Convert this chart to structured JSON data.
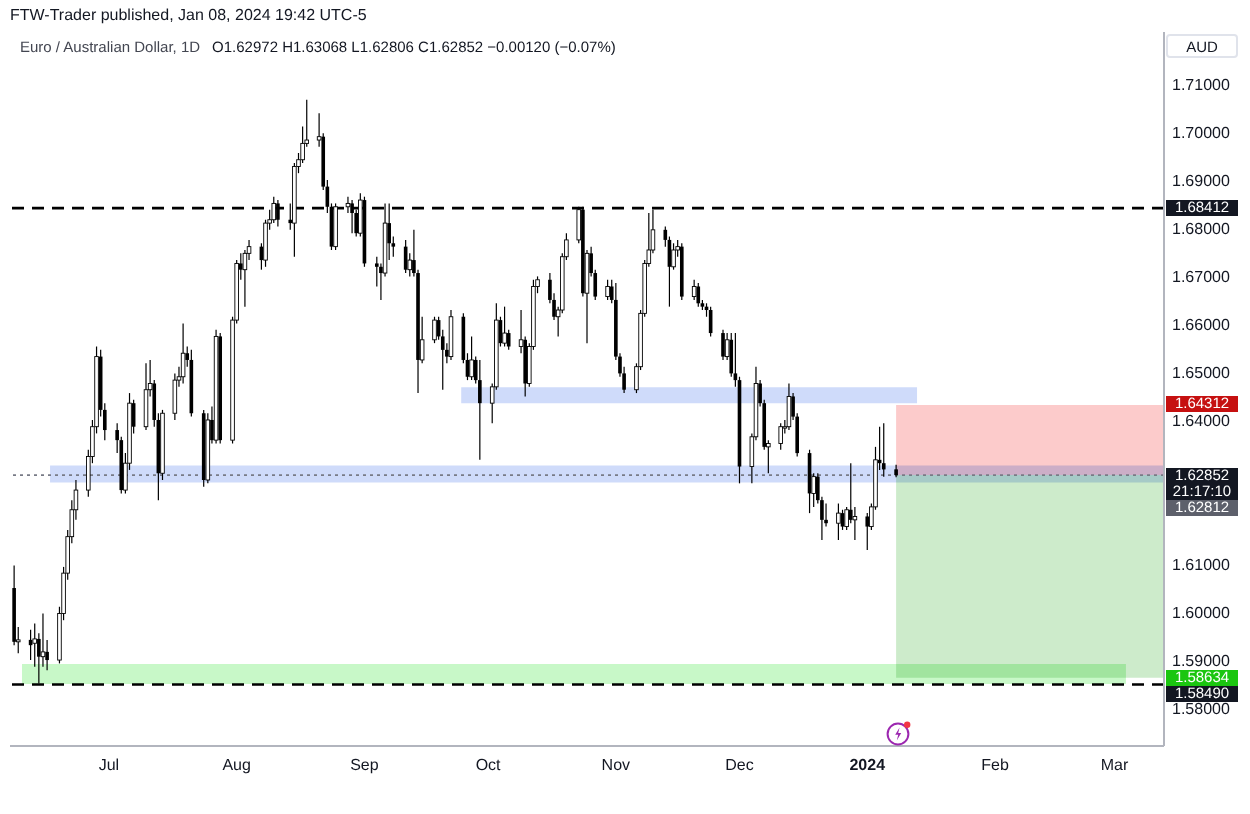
{
  "chart_data": {
    "type": "candlestick",
    "title": "Euro / Australian Dollar, 1D",
    "subtitle": "O1.62972 H1.63068 L1.62806 C1.62852 −0.00120 (−0.07%)",
    "ylabel": "AUD",
    "annotations": [
      "FTW-Trader published, Jan 08, 2024 19:42 UTC-5",
      "21:17:10",
      "1.62812"
    ],
    "color": "#000000",
    "x": [
      "2023-06-08",
      "2023-06-09",
      "2023-06-12",
      "2023-06-13",
      "2023-06-14",
      "2023-06-15",
      "2023-06-16",
      "2023-06-19",
      "2023-06-20",
      "2023-06-21",
      "2023-06-22",
      "2023-06-23",
      "2023-06-26",
      "2023-06-27",
      "2023-06-28",
      "2023-06-29",
      "2023-06-30",
      "2023-07-03",
      "2023-07-04",
      "2023-07-05",
      "2023-07-06",
      "2023-07-07",
      "2023-07-10",
      "2023-07-11",
      "2023-07-12",
      "2023-07-13",
      "2023-07-14",
      "2023-07-17",
      "2023-07-18",
      "2023-07-19",
      "2023-07-20",
      "2023-07-21",
      "2023-07-24",
      "2023-07-25",
      "2023-07-26",
      "2023-07-27",
      "2023-07-28",
      "2023-07-31",
      "2023-08-01",
      "2023-08-02",
      "2023-08-03",
      "2023-08-04",
      "2023-08-07",
      "2023-08-08",
      "2023-08-09",
      "2023-08-10",
      "2023-08-11",
      "2023-08-14",
      "2023-08-15",
      "2023-08-16",
      "2023-08-17",
      "2023-08-18",
      "2023-08-21",
      "2023-08-22",
      "2023-08-23",
      "2023-08-24",
      "2023-08-25",
      "2023-08-28",
      "2023-08-29",
      "2023-08-30",
      "2023-08-31",
      "2023-09-01",
      "2023-09-04",
      "2023-09-05",
      "2023-09-06",
      "2023-09-07",
      "2023-09-08",
      "2023-09-11",
      "2023-09-12",
      "2023-09-13",
      "2023-09-14",
      "2023-09-15",
      "2023-09-18",
      "2023-09-19",
      "2023-09-20",
      "2023-09-21",
      "2023-09-22",
      "2023-09-25",
      "2023-09-26",
      "2023-09-27",
      "2023-09-28",
      "2023-09-29",
      "2023-10-02",
      "2023-10-03",
      "2023-10-04",
      "2023-10-05",
      "2023-10-06",
      "2023-10-09",
      "2023-10-10",
      "2023-10-11",
      "2023-10-12",
      "2023-10-13",
      "2023-10-16",
      "2023-10-17",
      "2023-10-18",
      "2023-10-19",
      "2023-10-20",
      "2023-10-23",
      "2023-10-24",
      "2023-10-25",
      "2023-10-26",
      "2023-10-27",
      "2023-10-30",
      "2023-10-31",
      "2023-11-01",
      "2023-11-02",
      "2023-11-03",
      "2023-11-06",
      "2023-11-07",
      "2023-11-08",
      "2023-11-09",
      "2023-11-10",
      "2023-11-13",
      "2023-11-14",
      "2023-11-15",
      "2023-11-16",
      "2023-11-17",
      "2023-11-20",
      "2023-11-21",
      "2023-11-22",
      "2023-11-23",
      "2023-11-24",
      "2023-11-27",
      "2023-11-28",
      "2023-11-29",
      "2023-11-30",
      "2023-12-01",
      "2023-12-04",
      "2023-12-05",
      "2023-12-06",
      "2023-12-07",
      "2023-12-08",
      "2023-12-11",
      "2023-12-12",
      "2023-12-13",
      "2023-12-14",
      "2023-12-15",
      "2023-12-18",
      "2023-12-19",
      "2023-12-20",
      "2023-12-21",
      "2023-12-22",
      "2023-12-25",
      "2023-12-26",
      "2023-12-27",
      "2023-12-28",
      "2023-12-29",
      "2024-01-01",
      "2024-01-02",
      "2024-01-03",
      "2024-01-04",
      "2024-01-05",
      "2024-01-08"
    ],
    "ohlc": [
      [
        1.605,
        1.6097,
        1.5931,
        1.5938
      ],
      [
        1.5938,
        1.5969,
        1.5914,
        1.5942
      ],
      [
        1.5942,
        1.5963,
        1.59,
        1.5931
      ],
      [
        1.5935,
        1.5976,
        1.5886,
        1.5944
      ],
      [
        1.5944,
        1.5956,
        1.5851,
        1.5907
      ],
      [
        1.5907,
        1.5997,
        1.5886,
        1.5917
      ],
      [
        1.5917,
        1.5942,
        1.5879,
        1.59
      ],
      [
        1.59,
        1.6011,
        1.5893,
        1.5997
      ],
      [
        1.5997,
        1.6094,
        1.5983,
        1.6081
      ],
      [
        1.6081,
        1.6171,
        1.6067,
        1.6157
      ],
      [
        1.6157,
        1.6233,
        1.6143,
        1.6213
      ],
      [
        1.6213,
        1.6275,
        1.6192,
        1.6254
      ],
      [
        1.6254,
        1.6338,
        1.624,
        1.6324
      ],
      [
        1.6324,
        1.64,
        1.631,
        1.6386
      ],
      [
        1.6386,
        1.6553,
        1.6372,
        1.6532
      ],
      [
        1.6532,
        1.6546,
        1.6407,
        1.6421
      ],
      [
        1.6421,
        1.6435,
        1.6358,
        1.6379
      ],
      [
        1.6379,
        1.6393,
        1.6331,
        1.6358
      ],
      [
        1.6358,
        1.6365,
        1.6247,
        1.6254
      ],
      [
        1.6254,
        1.6331,
        1.6247,
        1.631
      ],
      [
        1.631,
        1.6456,
        1.6296,
        1.6435
      ],
      [
        1.6435,
        1.6442,
        1.6372,
        1.6386
      ],
      [
        1.6386,
        1.6518,
        1.6379,
        1.6463
      ],
      [
        1.6463,
        1.6525,
        1.6449,
        1.6476
      ],
      [
        1.6476,
        1.6483,
        1.6386,
        1.64
      ],
      [
        1.64,
        1.6414,
        1.6233,
        1.6289
      ],
      [
        1.6289,
        1.6421,
        1.6275,
        1.6414
      ],
      [
        1.6414,
        1.6497,
        1.64,
        1.6483
      ],
      [
        1.6483,
        1.6511,
        1.6469,
        1.649
      ],
      [
        1.649,
        1.6601,
        1.6476,
        1.6539
      ],
      [
        1.6539,
        1.6553,
        1.6511,
        1.6525
      ],
      [
        1.6525,
        1.6546,
        1.6407,
        1.6414
      ],
      [
        1.6414,
        1.6421,
        1.6261,
        1.6275
      ],
      [
        1.6275,
        1.6414,
        1.6268,
        1.64
      ],
      [
        1.64,
        1.6428,
        1.6351,
        1.6358
      ],
      [
        1.6358,
        1.6588,
        1.6351,
        1.6574
      ],
      [
        1.6574,
        1.6581,
        1.6351,
        1.6358
      ],
      [
        1.6358,
        1.6615,
        1.6351,
        1.6608
      ],
      [
        1.6608,
        1.6733,
        1.6601,
        1.6726
      ],
      [
        1.6726,
        1.6747,
        1.6692,
        1.6713
      ],
      [
        1.6713,
        1.6754,
        1.6636,
        1.6747
      ],
      [
        1.6747,
        1.6775,
        1.6733,
        1.6761
      ],
      [
        1.6761,
        1.6768,
        1.6713,
        1.6733
      ],
      [
        1.6733,
        1.6817,
        1.6719,
        1.681
      ],
      [
        1.681,
        1.6838,
        1.6796,
        1.6817
      ],
      [
        1.6817,
        1.6865,
        1.681,
        1.6851
      ],
      [
        1.6851,
        1.6858,
        1.6803,
        1.6817
      ],
      [
        1.6817,
        1.6851,
        1.6796,
        1.681
      ],
      [
        1.681,
        1.6935,
        1.674,
        1.6928
      ],
      [
        1.6928,
        1.6956,
        1.6914,
        1.6942
      ],
      [
        1.6942,
        1.7011,
        1.6935,
        1.6976
      ],
      [
        1.6976,
        1.7067,
        1.6969,
        1.6983
      ],
      [
        1.6983,
        1.7039,
        1.6969,
        1.699
      ],
      [
        1.699,
        1.6997,
        1.6879,
        1.6886
      ],
      [
        1.6886,
        1.69,
        1.6831,
        1.6844
      ],
      [
        1.6844,
        1.6851,
        1.6754,
        1.6761
      ],
      [
        1.6761,
        1.6851,
        1.6754,
        1.6844
      ],
      [
        1.6844,
        1.6865,
        1.6831,
        1.6851
      ],
      [
        1.6851,
        1.6858,
        1.6789,
        1.6831
      ],
      [
        1.6831,
        1.6838,
        1.6782,
        1.6789
      ],
      [
        1.6789,
        1.6872,
        1.6782,
        1.6858
      ],
      [
        1.6858,
        1.6865,
        1.6719,
        1.6726
      ],
      [
        1.6726,
        1.674,
        1.6678,
        1.6719
      ],
      [
        1.6719,
        1.6726,
        1.665,
        1.6706
      ],
      [
        1.6706,
        1.6851,
        1.6699,
        1.681
      ],
      [
        1.681,
        1.6851,
        1.6733,
        1.6768
      ],
      [
        1.6768,
        1.6782,
        1.674,
        1.6761
      ],
      [
        1.6761,
        1.6775,
        1.6706,
        1.6713
      ],
      [
        1.6713,
        1.6747,
        1.6699,
        1.6733
      ],
      [
        1.6733,
        1.6796,
        1.6699,
        1.6706
      ],
      [
        1.6706,
        1.6713,
        1.6456,
        1.6525
      ],
      [
        1.6525,
        1.6615,
        1.6518,
        1.6567
      ],
      [
        1.6567,
        1.6615,
        1.656,
        1.6608
      ],
      [
        1.6608,
        1.6615,
        1.6567,
        1.6574
      ],
      [
        1.6574,
        1.6588,
        1.6463,
        1.6546
      ],
      [
        1.6546,
        1.656,
        1.6518,
        1.6532
      ],
      [
        1.6532,
        1.6629,
        1.6525,
        1.6615
      ],
      [
        1.6615,
        1.6622,
        1.6518,
        1.6525
      ],
      [
        1.6525,
        1.6539,
        1.6483,
        1.649
      ],
      [
        1.649,
        1.6574,
        1.6483,
        1.6525
      ],
      [
        1.6525,
        1.6532,
        1.6476,
        1.6483
      ],
      [
        1.6483,
        1.6525,
        1.6317,
        1.6435
      ],
      [
        1.6435,
        1.6476,
        1.6393,
        1.6469
      ],
      [
        1.6469,
        1.6643,
        1.6463,
        1.6608
      ],
      [
        1.6608,
        1.6615,
        1.6553,
        1.656
      ],
      [
        1.656,
        1.6636,
        1.6553,
        1.6581
      ],
      [
        1.6581,
        1.6588,
        1.6546,
        1.6553
      ],
      [
        1.6553,
        1.6629,
        1.6539,
        1.6567
      ],
      [
        1.6567,
        1.6574,
        1.6449,
        1.6476
      ],
      [
        1.6476,
        1.656,
        1.6469,
        1.6553
      ],
      [
        1.6553,
        1.6692,
        1.6546,
        1.6678
      ],
      [
        1.6678,
        1.6699,
        1.6664,
        1.6692
      ],
      [
        1.6692,
        1.6706,
        1.6643,
        1.665
      ],
      [
        1.665,
        1.6664,
        1.6608,
        1.6615
      ],
      [
        1.6615,
        1.6636,
        1.6574,
        1.6629
      ],
      [
        1.6629,
        1.6747,
        1.6622,
        1.674
      ],
      [
        1.674,
        1.6789,
        1.6733,
        1.6775
      ],
      [
        1.6775,
        1.6844,
        1.6768,
        1.6838
      ],
      [
        1.6838,
        1.6844,
        1.6657,
        1.6664
      ],
      [
        1.6664,
        1.6754,
        1.656,
        1.6747
      ],
      [
        1.6747,
        1.6761,
        1.6699,
        1.6706
      ],
      [
        1.6706,
        1.6713,
        1.665,
        1.6657
      ],
      [
        1.6657,
        1.6692,
        1.665,
        1.6678
      ],
      [
        1.6678,
        1.6692,
        1.6643,
        1.665
      ],
      [
        1.665,
        1.6685,
        1.6525,
        1.6532
      ],
      [
        1.6532,
        1.6539,
        1.649,
        1.6497
      ],
      [
        1.6497,
        1.6511,
        1.6456,
        1.6463
      ],
      [
        1.6463,
        1.6518,
        1.6456,
        1.6511
      ],
      [
        1.6511,
        1.6629,
        1.6504,
        1.6622
      ],
      [
        1.6622,
        1.6733,
        1.6615,
        1.6726
      ],
      [
        1.6726,
        1.6831,
        1.6719,
        1.6754
      ],
      [
        1.6754,
        1.6838,
        1.6747,
        1.6796
      ],
      [
        1.6796,
        1.6803,
        1.6761,
        1.6775
      ],
      [
        1.6775,
        1.6782,
        1.6636,
        1.6719
      ],
      [
        1.6719,
        1.6768,
        1.6713,
        1.6754
      ],
      [
        1.6754,
        1.6775,
        1.674,
        1.6761
      ],
      [
        1.6761,
        1.6768,
        1.665,
        1.6657
      ],
      [
        1.6657,
        1.6692,
        1.665,
        1.6678
      ],
      [
        1.6678,
        1.6685,
        1.6636,
        1.6643
      ],
      [
        1.6643,
        1.665,
        1.6629,
        1.6636
      ],
      [
        1.6636,
        1.6643,
        1.6615,
        1.6629
      ],
      [
        1.6629,
        1.6636,
        1.6574,
        1.6581
      ],
      [
        1.6581,
        1.6588,
        1.6525,
        1.6532
      ],
      [
        1.6532,
        1.6581,
        1.6525,
        1.6567
      ],
      [
        1.6567,
        1.6581,
        1.649,
        1.6497
      ],
      [
        1.6497,
        1.6581,
        1.6469,
        1.6483
      ],
      [
        1.6483,
        1.649,
        1.6268,
        1.6303
      ],
      [
        1.6303,
        1.6372,
        1.6268,
        1.6365
      ],
      [
        1.6365,
        1.6511,
        1.6358,
        1.6476
      ],
      [
        1.6476,
        1.6483,
        1.6428,
        1.6435
      ],
      [
        1.6435,
        1.6442,
        1.6338,
        1.6344
      ],
      [
        1.6344,
        1.6358,
        1.6289,
        1.6351
      ],
      [
        1.6351,
        1.6393,
        1.6338,
        1.6386
      ],
      [
        1.6386,
        1.64,
        1.6372,
        1.6386
      ],
      [
        1.6386,
        1.6476,
        1.6379,
        1.6449
      ],
      [
        1.6449,
        1.6456,
        1.64,
        1.6407
      ],
      [
        1.6407,
        1.6414,
        1.6324,
        1.6331
      ],
      [
        1.6331,
        1.6338,
        1.6206,
        1.6247
      ],
      [
        1.6247,
        1.6289,
        1.6219,
        1.6282
      ],
      [
        1.6282,
        1.6289,
        1.6226,
        1.6233
      ],
      [
        1.6233,
        1.624,
        1.615,
        1.6192
      ],
      [
        1.6192,
        1.6226,
        1.6178,
        1.6185
      ],
      [
        1.6185,
        1.6226,
        1.615,
        1.6206
      ],
      [
        1.6206,
        1.6213,
        1.6171,
        1.6178
      ],
      [
        1.6178,
        1.6219,
        1.6171,
        1.6213
      ],
      [
        1.6213,
        1.631,
        1.6185,
        1.6192
      ],
      [
        1.6192,
        1.6219,
        1.615,
        1.6199
      ],
      [
        1.6199,
        1.6206,
        1.6129,
        1.6178
      ],
      [
        1.6178,
        1.6226,
        1.6171,
        1.6219
      ],
      [
        1.6219,
        1.6344,
        1.6213,
        1.6317
      ],
      [
        1.6317,
        1.6386,
        1.6296,
        1.631
      ],
      [
        1.631,
        1.6393,
        1.6282,
        1.6297
      ],
      [
        1.62972,
        1.63068,
        1.62806,
        1.62852
      ]
    ],
    "xlim": [
      "2023-06-07",
      "2024-03-13"
    ],
    "xticks": [
      {
        "value": "2023-07-01",
        "label": "Jul"
      },
      {
        "value": "2023-08-01",
        "label": "Aug"
      },
      {
        "value": "2023-09-01",
        "label": "Sep"
      },
      {
        "value": "2023-10-01",
        "label": "Oct"
      },
      {
        "value": "2023-11-01",
        "label": "Nov"
      },
      {
        "value": "2023-12-01",
        "label": "Dec"
      },
      {
        "value": "2024-01-01",
        "label": "2024"
      },
      {
        "value": "2024-02-01",
        "label": "Feb"
      },
      {
        "value": "2024-03-01",
        "label": "Mar"
      }
    ],
    "ylim": [
      1.5721,
      1.7208
    ],
    "yticks": [
      {
        "value": 1.58,
        "label": "1.58000"
      },
      {
        "value": 1.59,
        "label": "1.59000"
      },
      {
        "value": 1.6,
        "label": "1.60000"
      },
      {
        "value": 1.61,
        "label": "1.61000"
      },
      {
        "value": 1.64,
        "label": "1.64000"
      },
      {
        "value": 1.65,
        "label": "1.65000"
      },
      {
        "value": 1.66,
        "label": "1.66000"
      },
      {
        "value": 1.67,
        "label": "1.67000"
      },
      {
        "value": 1.68,
        "label": "1.68000"
      },
      {
        "value": 1.69,
        "label": "1.69000"
      },
      {
        "value": 1.7,
        "label": "1.70000"
      },
      {
        "value": 1.71,
        "label": "1.71000"
      }
    ],
    "ref_lines": [
      {
        "axis": "y",
        "value": 1.68412,
        "label": "1.68412",
        "color": "#000000",
        "line_style": "dashed"
      },
      {
        "axis": "y",
        "value": 1.5849,
        "label": "1.58490",
        "color": "#000000",
        "line_style": "dashed"
      },
      {
        "axis": "y",
        "value": 1.62852,
        "label": "1.62852",
        "color": "#787b86",
        "line_style": "dotted"
      }
    ],
    "bands": [
      {
        "axis": "y",
        "from": 1.6435,
        "to": 1.6468,
        "color": "#cfdbfa"
      },
      {
        "axis": "y",
        "from": 1.627,
        "to": 1.6305,
        "color": "#cfdbfa"
      },
      {
        "axis": "y",
        "from": 1.585,
        "to": 1.5892,
        "color": "#c8f8c8"
      },
      {
        "axis": "y",
        "from": 1.62852,
        "to": 1.64312,
        "label": "1.64312",
        "color": "#fccbcb"
      },
      {
        "axis": "y",
        "from": 1.62852,
        "to": 1.58634,
        "label": "1.58634",
        "color": "#cdebcb"
      }
    ]
  }
}
